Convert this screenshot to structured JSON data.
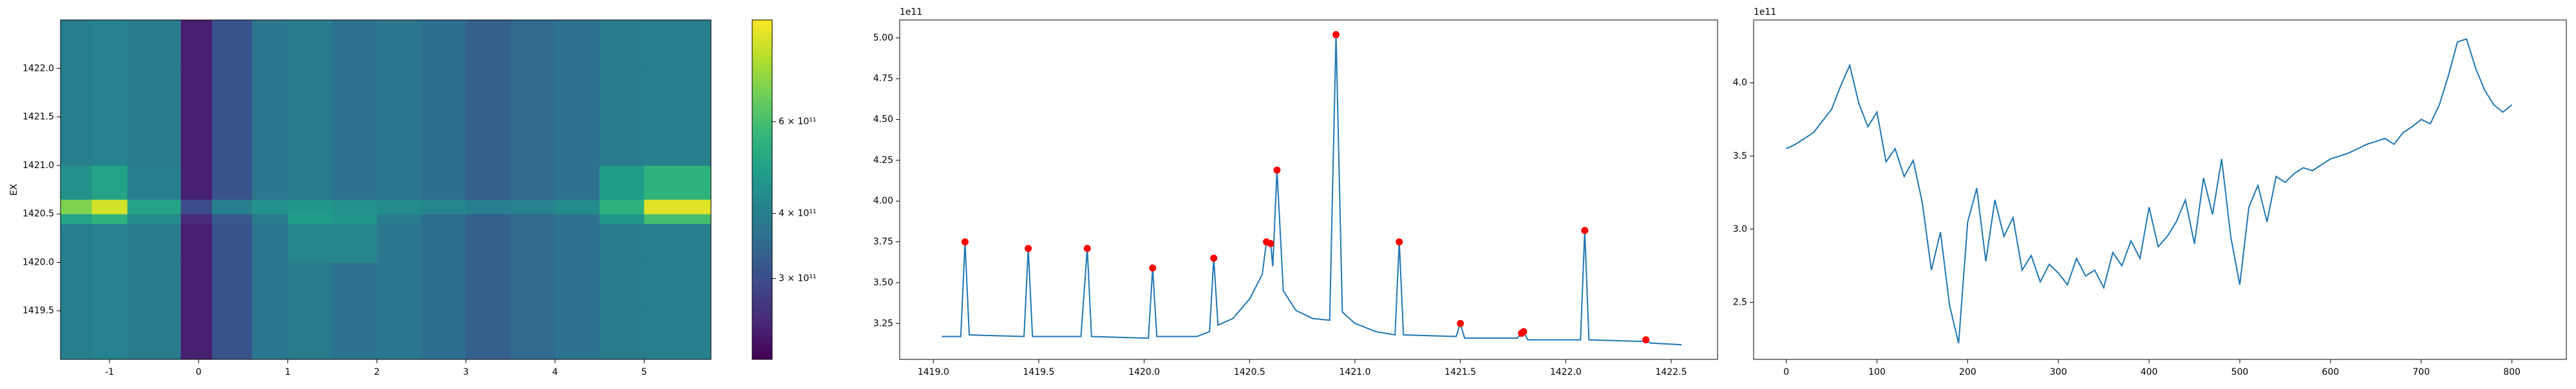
{
  "chart_data": [
    {
      "type": "heatmap",
      "colormap": "viridis",
      "ylabel": "EX",
      "xlim": [
        -1.55,
        5.75
      ],
      "ylim": [
        1419.0,
        1422.5
      ],
      "xticks": [
        -1,
        0,
        1,
        2,
        3,
        4,
        5
      ],
      "yticks": [
        1419.5,
        {
          "value": 1420.0,
          "label": "1420.0"
        },
        1420.5,
        {
          "value": 1421.0,
          "label": "1421.0"
        },
        1421.5,
        {
          "value": 1422.0,
          "label": "1422.0"
        }
      ],
      "x_edges": [
        -1.55,
        -1.2,
        -0.8,
        -0.2,
        0.15,
        0.6,
        1.0,
        1.5,
        2.0,
        2.5,
        3.0,
        3.5,
        4.0,
        4.5,
        5.0,
        5.75
      ],
      "y_edges": [
        1419.0,
        1419.5,
        1420.0,
        1420.4,
        1420.5,
        1420.65,
        1421.0,
        1421.5,
        1422.0,
        1422.5
      ],
      "z": [
        [
          400000000000.0,
          410000000000.0,
          390000000000.0,
          240000000000.0,
          310000000000.0,
          380000000000.0,
          390000000000.0,
          370000000000.0,
          380000000000.0,
          360000000000.0,
          330000000000.0,
          350000000000.0,
          370000000000.0,
          390000000000.0,
          400000000000.0
        ],
        [
          400000000000.0,
          410000000000.0,
          390000000000.0,
          240000000000.0,
          310000000000.0,
          380000000000.0,
          390000000000.0,
          370000000000.0,
          380000000000.0,
          360000000000.0,
          330000000000.0,
          350000000000.0,
          370000000000.0,
          390000000000.0,
          400000000000.0
        ],
        [
          400000000000.0,
          410000000000.0,
          390000000000.0,
          240000000000.0,
          310000000000.0,
          380000000000.0,
          420000000000.0,
          420000000000.0,
          380000000000.0,
          360000000000.0,
          330000000000.0,
          350000000000.0,
          370000000000.0,
          390000000000.0,
          400000000000.0
        ],
        [
          500000000000.0,
          550000000000.0,
          430000000000.0,
          250000000000.0,
          320000000000.0,
          390000000000.0,
          480000000000.0,
          460000000000.0,
          390000000000.0,
          360000000000.0,
          330000000000.0,
          350000000000.0,
          370000000000.0,
          460000000000.0,
          600000000000.0
        ],
        [
          700000000000.0,
          850000000000.0,
          500000000000.0,
          300000000000.0,
          400000000000.0,
          450000000000.0,
          460000000000.0,
          450000000000.0,
          430000000000.0,
          420000000000.0,
          400000000000.0,
          410000000000.0,
          430000000000.0,
          550000000000.0,
          880000000000.0
        ],
        [
          450000000000.0,
          500000000000.0,
          400000000000.0,
          240000000000.0,
          310000000000.0,
          380000000000.0,
          390000000000.0,
          370000000000.0,
          380000000000.0,
          360000000000.0,
          330000000000.0,
          350000000000.0,
          370000000000.0,
          480000000000.0,
          550000000000.0
        ],
        [
          400000000000.0,
          410000000000.0,
          390000000000.0,
          240000000000.0,
          310000000000.0,
          380000000000.0,
          390000000000.0,
          370000000000.0,
          380000000000.0,
          360000000000.0,
          330000000000.0,
          350000000000.0,
          370000000000.0,
          390000000000.0,
          400000000000.0
        ],
        [
          400000000000.0,
          410000000000.0,
          390000000000.0,
          240000000000.0,
          310000000000.0,
          380000000000.0,
          390000000000.0,
          370000000000.0,
          380000000000.0,
          360000000000.0,
          330000000000.0,
          350000000000.0,
          370000000000.0,
          390000000000.0,
          400000000000.0
        ],
        [
          400000000000.0,
          410000000000.0,
          390000000000.0,
          240000000000.0,
          310000000000.0,
          380000000000.0,
          390000000000.0,
          370000000000.0,
          380000000000.0,
          360000000000.0,
          330000000000.0,
          350000000000.0,
          370000000000.0,
          390000000000.0,
          400000000000.0
        ]
      ],
      "colorbar": {
        "scale": "log",
        "lim": [
          210000000000.0,
          940000000000.0
        ],
        "ticks": [
          {
            "value": 300000000000.0,
            "label": "3 × 10¹¹"
          },
          {
            "value": 400000000000.0,
            "label": "4 × 10¹¹"
          },
          {
            "value": 600000000000.0,
            "label": "6 × 10¹¹"
          }
        ]
      }
    },
    {
      "type": "line",
      "y_offset_label": "1e11",
      "xlim": [
        1418.84,
        1422.72
      ],
      "ylim": [
        3.03,
        5.11
      ],
      "xticks": [
        {
          "value": 1419.0,
          "label": "1419.0"
        },
        1419.5,
        {
          "value": 1420.0,
          "label": "1420.0"
        },
        1420.5,
        {
          "value": 1421.0,
          "label": "1421.0"
        },
        1421.5,
        {
          "value": 1422.0,
          "label": "1422.0"
        },
        1422.5
      ],
      "yticks": [
        3.25,
        {
          "value": 3.5,
          "label": "3.50"
        },
        3.75,
        {
          "value": 4.0,
          "label": "4.00"
        },
        4.25,
        {
          "value": 4.5,
          "label": "4.50"
        },
        4.75,
        {
          "value": 5.0,
          "label": "5.00"
        }
      ],
      "x": [
        1419.04,
        1419.13,
        1419.15,
        1419.17,
        1419.43,
        1419.45,
        1419.47,
        1419.7,
        1419.73,
        1419.75,
        1420.02,
        1420.04,
        1420.06,
        1420.25,
        1420.31,
        1420.33,
        1420.35,
        1420.42,
        1420.5,
        1420.56,
        1420.58,
        1420.6,
        1420.61,
        1420.63,
        1420.66,
        1420.72,
        1420.8,
        1420.88,
        1420.91,
        1420.94,
        1421.0,
        1421.1,
        1421.19,
        1421.21,
        1421.23,
        1421.48,
        1421.5,
        1421.52,
        1421.77,
        1421.79,
        1421.8,
        1421.82,
        1422.07,
        1422.09,
        1422.11,
        1422.36,
        1422.38,
        1422.4,
        1422.55
      ],
      "series": [
        {
          "color": "#1f77b4",
          "values": [
            3.17,
            3.17,
            3.75,
            3.18,
            3.17,
            3.71,
            3.17,
            3.17,
            3.71,
            3.17,
            3.16,
            3.59,
            3.17,
            3.17,
            3.2,
            3.65,
            3.24,
            3.28,
            3.4,
            3.55,
            3.75,
            3.74,
            3.6,
            4.19,
            3.45,
            3.33,
            3.28,
            3.27,
            5.02,
            3.32,
            3.25,
            3.2,
            3.18,
            3.75,
            3.18,
            3.17,
            3.25,
            3.16,
            3.16,
            3.19,
            3.2,
            3.15,
            3.15,
            3.82,
            3.15,
            3.14,
            3.15,
            3.13,
            3.12
          ]
        }
      ],
      "markers": {
        "color": "#ff0000",
        "x": [
          1419.15,
          1419.45,
          1419.73,
          1420.04,
          1420.33,
          1420.58,
          1420.6,
          1420.63,
          1420.91,
          1421.21,
          1421.5,
          1421.79,
          1421.8,
          1422.09,
          1422.38
        ],
        "values": [
          3.75,
          3.71,
          3.71,
          3.59,
          3.65,
          3.75,
          3.74,
          4.19,
          5.02,
          3.75,
          3.25,
          3.19,
          3.2,
          3.82,
          3.15
        ]
      }
    },
    {
      "type": "line",
      "y_offset_label": "1e11",
      "xlim": [
        -36,
        860
      ],
      "ylim": [
        2.11,
        4.43
      ],
      "xticks": [
        0,
        100,
        200,
        300,
        400,
        500,
        600,
        700,
        800
      ],
      "yticks": [
        2.5,
        {
          "value": 3.0,
          "label": "3.0"
        },
        3.5,
        {
          "value": 4.0,
          "label": "4.0"
        }
      ],
      "x": [
        0,
        10,
        20,
        30,
        40,
        50,
        60,
        70,
        80,
        90,
        100,
        110,
        120,
        130,
        140,
        150,
        160,
        170,
        180,
        190,
        200,
        210,
        220,
        230,
        240,
        250,
        260,
        270,
        280,
        290,
        300,
        310,
        320,
        330,
        340,
        350,
        360,
        370,
        380,
        390,
        400,
        410,
        420,
        430,
        440,
        450,
        460,
        470,
        480,
        490,
        500,
        510,
        520,
        530,
        540,
        550,
        560,
        570,
        580,
        590,
        600,
        610,
        620,
        630,
        640,
        650,
        660,
        670,
        680,
        690,
        700,
        710,
        720,
        730,
        740,
        750,
        760,
        770,
        780,
        790,
        800
      ],
      "series": [
        {
          "color": "#1f77b4",
          "values": [
            3.55,
            3.58,
            3.62,
            3.66,
            3.74,
            3.82,
            3.98,
            4.12,
            3.86,
            3.7,
            3.8,
            3.46,
            3.55,
            3.36,
            3.47,
            3.18,
            2.72,
            2.98,
            2.48,
            2.22,
            3.05,
            3.28,
            2.78,
            3.2,
            2.95,
            3.08,
            2.72,
            2.82,
            2.64,
            2.76,
            2.7,
            2.62,
            2.8,
            2.68,
            2.72,
            2.6,
            2.84,
            2.75,
            2.92,
            2.8,
            3.15,
            2.88,
            2.95,
            3.05,
            3.2,
            2.9,
            3.35,
            3.1,
            3.48,
            2.95,
            2.62,
            3.15,
            3.3,
            3.05,
            3.36,
            3.32,
            3.38,
            3.42,
            3.4,
            3.44,
            3.48,
            3.5,
            3.52,
            3.55,
            3.58,
            3.6,
            3.62,
            3.58,
            3.66,
            3.7,
            3.75,
            3.72,
            3.85,
            4.05,
            4.28,
            4.3,
            4.1,
            3.95,
            3.85,
            3.8,
            3.85
          ]
        }
      ]
    }
  ]
}
